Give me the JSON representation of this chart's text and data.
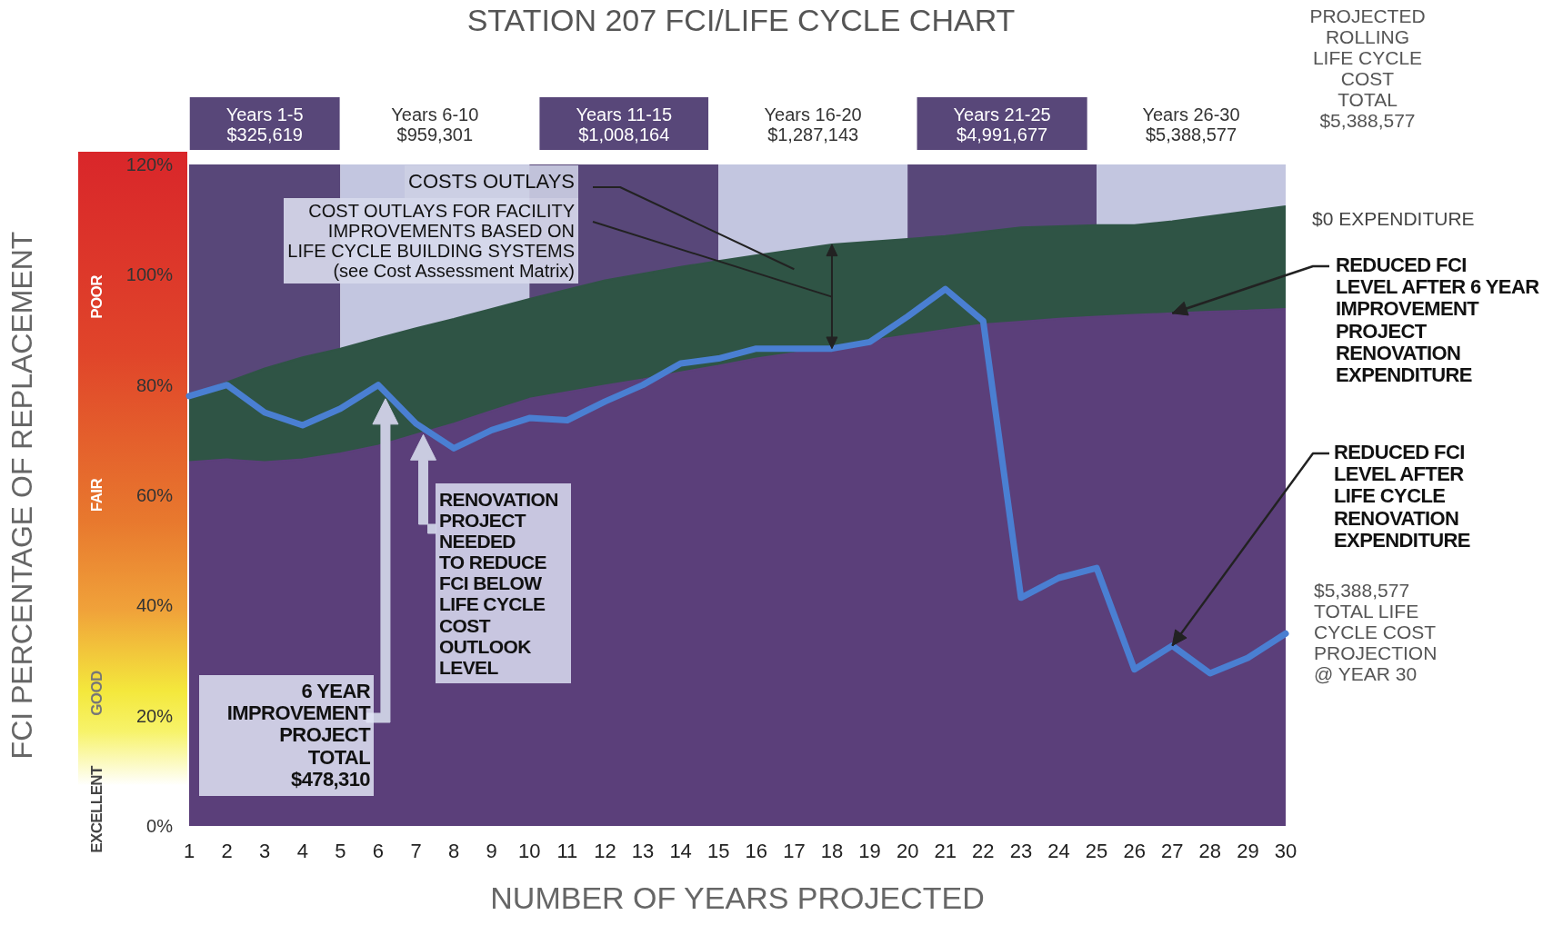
{
  "chart_data": {
    "type": "line",
    "title": "STATION 207 FCI/LIFE CYCLE CHART",
    "xlabel": "NUMBER OF YEARS PROJECTED",
    "ylabel": "FCI PERCENTAGE OF REPLACEMENT",
    "x": [
      1,
      2,
      3,
      4,
      5,
      6,
      7,
      8,
      9,
      10,
      11,
      12,
      13,
      14,
      15,
      16,
      17,
      18,
      19,
      20,
      21,
      22,
      23,
      24,
      25,
      26,
      27,
      28,
      29,
      30
    ],
    "series": [
      {
        "type": "area",
        "color": "#2f5445",
        "values": [
          78,
          80.5,
          83,
          85,
          86.6,
          88.5,
          90.3,
          92,
          93.8,
          95.6,
          97.3,
          99,
          100.2,
          101.4,
          102.5,
          103.5,
          104.5,
          105.5,
          106,
          106.5,
          107,
          107.8,
          108.6,
          108.8,
          109,
          109,
          109.7,
          110.6,
          111.5,
          112.4
        ]
      },
      {
        "type": "area",
        "color": "#5b3f7a",
        "values": [
          66,
          66.5,
          66,
          66.5,
          67.6,
          69,
          71,
          73,
          75.3,
          77.5,
          78.7,
          79.9,
          81,
          82.3,
          83.5,
          84.8,
          85.8,
          86.9,
          88,
          89,
          90,
          91,
          91.5,
          92,
          92.4,
          92.7,
          93,
          93.3,
          93.5,
          93.8
        ]
      },
      {
        "type": "line",
        "color": "#4a7fd2",
        "values": [
          78,
          80,
          75,
          72.7,
          75.7,
          80,
          73,
          68.5,
          71.8,
          74,
          73.6,
          77,
          80,
          83.9,
          84.8,
          86.6,
          86.6,
          86.6,
          87.8,
          92.4,
          97.4,
          91.6,
          41.4,
          45,
          46.8,
          28.4,
          32.7,
          27.7,
          30.5,
          34.9
        ]
      }
    ],
    "xlim": [
      1,
      30
    ],
    "xticks": [
      1,
      2,
      3,
      4,
      5,
      6,
      7,
      8,
      9,
      10,
      11,
      12,
      13,
      14,
      15,
      16,
      17,
      18,
      19,
      20,
      21,
      22,
      23,
      24,
      25,
      26,
      27,
      28,
      29,
      30
    ],
    "ylim": [
      0,
      120
    ],
    "yticks": [
      {
        "value": 0,
        "label": "0%"
      },
      {
        "value": 20,
        "label": "20%"
      },
      {
        "value": 40,
        "label": "40%"
      },
      {
        "value": 60,
        "label": "60%"
      },
      {
        "value": 80,
        "label": "80%"
      },
      {
        "value": 100,
        "label": "100%"
      },
      {
        "value": 120,
        "label": "120%"
      }
    ],
    "marker": "none",
    "bands": [
      {
        "axis": "x",
        "from": 1,
        "to": 5,
        "label": "Years 1-5\n$325,619",
        "color": "#584779"
      },
      {
        "axis": "x",
        "from": 5,
        "to": 10,
        "label": "Years 6-10\n$959,301",
        "color": "#c3c6e0"
      },
      {
        "axis": "x",
        "from": 10,
        "to": 15,
        "label": "Years 11-15\n$1,008,164",
        "color": "#584779"
      },
      {
        "axis": "x",
        "from": 15,
        "to": 20,
        "label": "Years 16-20\n$1,287,143",
        "color": "#c3c6e0"
      },
      {
        "axis": "x",
        "from": 20,
        "to": 25,
        "label": "Years 21-25\n$4,991,677",
        "color": "#584779"
      },
      {
        "axis": "x",
        "from": 25,
        "to": 30,
        "label": "Years 26-30\n$5,388,577",
        "color": "#c3c6e0"
      }
    ],
    "annotations": [
      "PROJECTED\nROLLING\nLIFE CYCLE\nCOST\nTOTAL\n$5,388,577",
      "$0 EXPENDITURE",
      {
        "text": "REDUCED FCI\nLEVEL AFTER 6 YEAR\nIMPROVEMENT\nPROJECT\nRENOVATION\nEXPENDITURE",
        "x": 27,
        "y": 93
      },
      {
        "text": "REDUCED FCI\nLEVEL AFTER\nLIFE CYCLE\nRENOVATION\nEXPENDITURE",
        "x": 27,
        "y": 32.7
      },
      "$5,388,577\nTOTAL LIFE\nCYCLE COST\nPROJECTION\n@ YEAR 30",
      "COSTS OUTLAYS",
      "COST OUTLAYS FOR FACILITY\nIMPROVEMENTS BASED ON\nLIFE CYCLE BUILDING SYSTEMS\n(see Cost Assessment Matrix)",
      "6 YEAR\nIMPROVEMENT\nPROJECT\nTOTAL\n$478,310",
      "RENOVATION\nPROJECT\nNEEDED\nTO REDUCE\nFCI BELOW\nLIFE CYCLE\nCOST\nOUTLOOK\nLEVEL",
      "POOR",
      "FAIR",
      "GOOD",
      "EXCELLENT"
    ]
  }
}
